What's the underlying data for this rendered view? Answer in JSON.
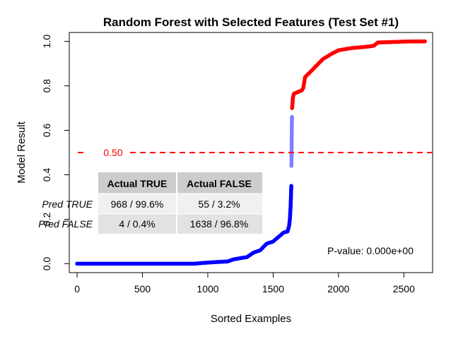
{
  "chart_data": {
    "type": "scatter",
    "title": "Random Forest with Selected Features (Test Set #1)",
    "xlabel": "Sorted Examples",
    "ylabel": "Model Result",
    "xlim": [
      -60,
      2720
    ],
    "ylim": [
      -0.04,
      1.04
    ],
    "x_ticks": [
      0,
      500,
      1000,
      1500,
      2000,
      2500
    ],
    "y_ticks": [
      0.0,
      0.2,
      0.4,
      0.6,
      0.8,
      1.0
    ],
    "x_tick_labels": [
      "0",
      "500",
      "1000",
      "1500",
      "2000",
      "2500"
    ],
    "y_tick_labels": [
      "0.0",
      "0.2",
      "0.4",
      "0.6",
      "0.8",
      "1.0"
    ],
    "grid": false,
    "threshold": {
      "value": 0.5,
      "label": "0.50",
      "color": "#ff0000",
      "style": "dashed"
    },
    "series": [
      {
        "color": "#0000ff",
        "points": [
          [
            0,
            0.0
          ],
          [
            500,
            0.0
          ],
          [
            900,
            0.0
          ],
          [
            950,
            0.003
          ],
          [
            1050,
            0.007
          ],
          [
            1150,
            0.01
          ],
          [
            1200,
            0.02
          ],
          [
            1300,
            0.03
          ],
          [
            1350,
            0.05
          ],
          [
            1400,
            0.06
          ],
          [
            1450,
            0.09
          ],
          [
            1500,
            0.1
          ],
          [
            1540,
            0.12
          ],
          [
            1580,
            0.14
          ],
          [
            1610,
            0.145
          ],
          [
            1622,
            0.17
          ],
          [
            1628,
            0.2
          ],
          [
            1632,
            0.24
          ],
          [
            1635,
            0.28
          ],
          [
            1637,
            0.32
          ],
          [
            1639,
            0.35
          ]
        ]
      },
      {
        "color": "#ff0000",
        "points": [
          [
            1645,
            0.7
          ],
          [
            1648,
            0.72
          ],
          [
            1652,
            0.75
          ],
          [
            1660,
            0.765
          ],
          [
            1680,
            0.77
          ],
          [
            1700,
            0.775
          ],
          [
            1720,
            0.78
          ],
          [
            1730,
            0.79
          ],
          [
            1745,
            0.84
          ],
          [
            1780,
            0.86
          ],
          [
            1830,
            0.89
          ],
          [
            1880,
            0.92
          ],
          [
            1950,
            0.945
          ],
          [
            2000,
            0.96
          ],
          [
            2100,
            0.97
          ],
          [
            2200,
            0.975
          ],
          [
            2270,
            0.98
          ],
          [
            2300,
            0.995
          ],
          [
            2400,
            0.997
          ],
          [
            2500,
            0.999
          ],
          [
            2600,
            1.0
          ],
          [
            2661,
            1.0
          ]
        ]
      },
      {
        "color": "#7f7fff",
        "points": [
          [
            1640,
            0.44
          ],
          [
            1641,
            0.5
          ],
          [
            1642,
            0.56
          ],
          [
            1643,
            0.62
          ],
          [
            1644,
            0.66
          ]
        ]
      }
    ],
    "table": {
      "headers": [
        "Actual TRUE",
        "Actual FALSE"
      ],
      "rows": [
        {
          "label": "Pred TRUE",
          "cells": [
            "968 / 99.6%",
            "55 / 3.2%"
          ]
        },
        {
          "label": "Pred FALSE",
          "cells": [
            "4 / 0.4%",
            "1638 / 96.8%"
          ]
        }
      ]
    },
    "annotation": "P-value: 0.000e+00"
  }
}
